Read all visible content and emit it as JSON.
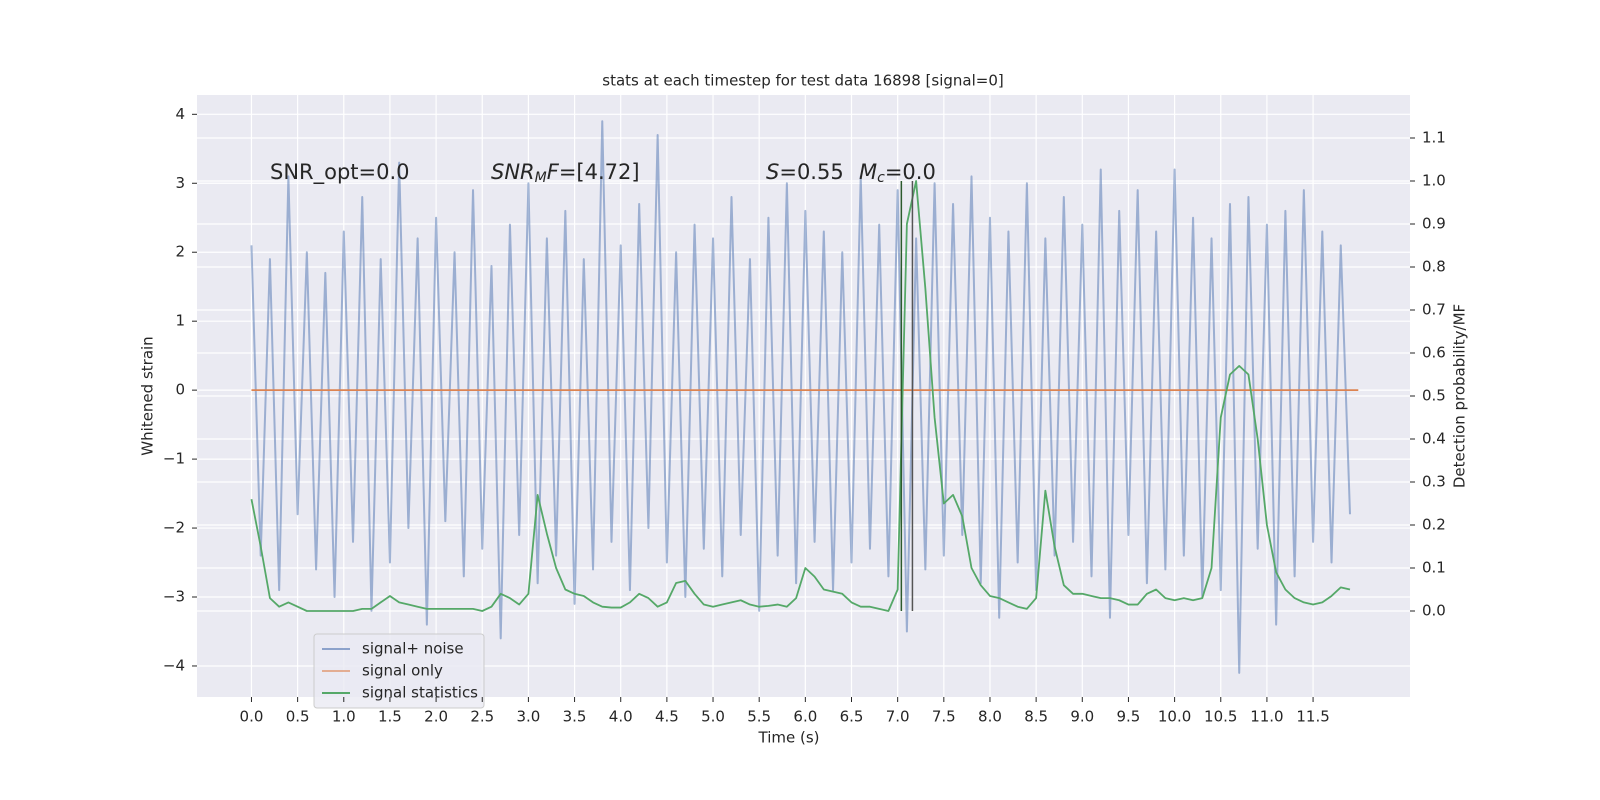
{
  "chart_data": {
    "type": "line",
    "title": "stats at each timestep for test data 16898 [signal=0]",
    "xlabel": "Time (s)",
    "ylabel": "Whitened strain",
    "y2label": "Detection probability/MF",
    "annotations": [
      [
        "SNR_opt=0.0"
      ],
      [
        "SNR",
        "M",
        "F",
        "=[4.72]"
      ],
      [
        "S",
        "=0.55"
      ],
      [
        "M",
        "c",
        "=0.0"
      ]
    ],
    "grid": true,
    "legend": "lower left",
    "xlim": [
      -0.59,
      12.55
    ],
    "ylim": [
      -4.45,
      4.28
    ],
    "y2lim": [
      -0.2,
      1.2
    ],
    "xticks": [
      {
        "value": 0,
        "label": "0.0"
      },
      0.5,
      {
        "value": 1,
        "label": "1.0"
      },
      1.5,
      {
        "value": 2,
        "label": "2.0"
      },
      2.5,
      {
        "value": 3,
        "label": "3.0"
      },
      3.5,
      {
        "value": 4,
        "label": "4.0"
      },
      4.5,
      {
        "value": 5,
        "label": "5.0"
      },
      5.5,
      {
        "value": 6,
        "label": "6.0"
      },
      6.5,
      {
        "value": 7,
        "label": "7.0"
      },
      7.5,
      {
        "value": 8,
        "label": "8.0"
      },
      8.5,
      {
        "value": 9,
        "label": "9.0"
      },
      9.5,
      {
        "value": 10,
        "label": "10.0"
      },
      10.5,
      {
        "value": 11,
        "label": "11.0"
      },
      11.5
    ],
    "yticks": [
      {
        "value": -4,
        "label": "−4"
      },
      {
        "value": -3,
        "label": "−3"
      },
      {
        "value": -2,
        "label": "−2"
      },
      {
        "value": -1,
        "label": "−1"
      },
      0,
      1,
      2,
      3,
      4
    ],
    "y2ticks": [
      {
        "value": 0,
        "label": "0.0"
      },
      0.1,
      0.2,
      0.3,
      0.4,
      0.5,
      0.6,
      0.7,
      0.8,
      0.9,
      {
        "value": 1,
        "label": "1.0"
      },
      1.1
    ],
    "x": [
      0.0,
      0.1,
      0.2,
      0.3,
      0.4,
      0.5,
      0.6,
      0.7,
      0.8,
      0.9,
      1.0,
      1.1,
      1.2,
      1.3,
      1.4,
      1.5,
      1.6,
      1.7,
      1.8,
      1.9,
      2.0,
      2.1,
      2.2,
      2.3,
      2.4,
      2.5,
      2.6,
      2.7,
      2.8,
      2.9,
      3.0,
      3.1,
      3.2,
      3.3,
      3.4,
      3.5,
      3.6,
      3.7,
      3.8,
      3.9,
      4.0,
      4.1,
      4.2,
      4.3,
      4.4,
      4.5,
      4.6,
      4.7,
      4.8,
      4.9,
      5.0,
      5.1,
      5.2,
      5.3,
      5.4,
      5.5,
      5.6,
      5.7,
      5.8,
      5.9,
      6.0,
      6.1,
      6.2,
      6.3,
      6.4,
      6.5,
      6.6,
      6.7,
      6.8,
      6.9,
      7.0,
      7.1,
      7.2,
      7.3,
      7.4,
      7.5,
      7.6,
      7.7,
      7.8,
      7.9,
      8.0,
      8.1,
      8.2,
      8.3,
      8.4,
      8.5,
      8.6,
      8.7,
      8.8,
      8.9,
      9.0,
      9.1,
      9.2,
      9.3,
      9.4,
      9.5,
      9.6,
      9.7,
      9.8,
      9.9,
      10.0,
      10.1,
      10.2,
      10.3,
      10.4,
      10.5,
      10.6,
      10.7,
      10.8,
      10.9,
      11.0,
      11.1,
      11.2,
      11.3,
      11.4,
      11.5,
      11.6,
      11.7,
      11.8,
      11.9
    ],
    "series": [
      {
        "name": "signal+ noise",
        "color": "#4c72b0",
        "values": [
          2.1,
          -2.4,
          1.9,
          -2.9,
          3.1,
          -1.8,
          2.0,
          -2.6,
          1.7,
          -3.0,
          2.3,
          -2.2,
          2.8,
          -3.2,
          1.9,
          -2.5,
          3.3,
          -2.0,
          2.2,
          -3.4,
          2.5,
          -1.9,
          2.0,
          -2.7,
          2.9,
          -2.3,
          1.8,
          -3.6,
          2.4,
          -2.1,
          3.0,
          -2.8,
          2.2,
          -2.4,
          2.6,
          -3.1,
          1.9,
          -2.6,
          3.9,
          -2.2,
          2.1,
          -2.9,
          2.7,
          -2.0,
          3.7,
          -2.5,
          2.0,
          -3.0,
          2.4,
          -2.3,
          2.2,
          -2.7,
          2.8,
          -2.1,
          1.9,
          -3.2,
          2.5,
          -2.4,
          3.0,
          -2.8,
          2.6,
          -2.2,
          2.3,
          -2.9,
          2.0,
          -2.5,
          3.1,
          -2.3,
          2.4,
          -2.7,
          2.9,
          -3.5,
          2.2,
          -2.6,
          3.0,
          -2.4,
          2.7,
          -2.1,
          3.1,
          -2.8,
          2.5,
          -3.3,
          2.3,
          -2.5,
          3.0,
          -2.9,
          2.2,
          -2.4,
          2.8,
          -2.2,
          2.4,
          -2.7,
          3.2,
          -3.3,
          2.6,
          -2.1,
          2.9,
          -2.8,
          2.3,
          -2.6,
          3.2,
          -2.4,
          2.5,
          -3.0,
          2.2,
          -2.9,
          2.7,
          -4.1,
          2.8,
          -2.3,
          2.4,
          -3.4,
          2.6,
          -2.7,
          2.9,
          -2.2,
          2.3,
          -2.5,
          2.1,
          -1.8
        ]
      },
      {
        "name": "signal only",
        "color": "#dd8452",
        "x": [
          0.0,
          11.99
        ],
        "values": [
          0,
          0
        ]
      },
      {
        "name": "signal statistics",
        "color": "#55a868",
        "axis": "y2",
        "values": [
          0.26,
          0.15,
          0.03,
          0.01,
          0.02,
          0.01,
          0.0,
          0.0,
          0.0,
          0.0,
          0.0,
          0.0,
          0.005,
          0.005,
          0.02,
          0.035,
          0.02,
          0.015,
          0.01,
          0.005,
          0.005,
          0.005,
          0.005,
          0.005,
          0.005,
          0.0,
          0.01,
          0.04,
          0.03,
          0.015,
          0.04,
          0.27,
          0.18,
          0.1,
          0.05,
          0.04,
          0.035,
          0.02,
          0.01,
          0.008,
          0.008,
          0.02,
          0.04,
          0.03,
          0.01,
          0.02,
          0.065,
          0.07,
          0.04,
          0.015,
          0.01,
          0.015,
          0.02,
          0.025,
          0.015,
          0.01,
          0.012,
          0.015,
          0.01,
          0.03,
          0.1,
          0.08,
          0.05,
          0.045,
          0.04,
          0.02,
          0.01,
          0.01,
          0.005,
          0.0,
          0.05,
          0.9,
          1.0,
          0.75,
          0.45,
          0.25,
          0.27,
          0.22,
          0.1,
          0.06,
          0.035,
          0.03,
          0.02,
          0.01,
          0.005,
          0.03,
          0.28,
          0.15,
          0.06,
          0.04,
          0.04,
          0.035,
          0.03,
          0.03,
          0.025,
          0.015,
          0.015,
          0.04,
          0.05,
          0.03,
          0.025,
          0.03,
          0.025,
          0.03,
          0.1,
          0.45,
          0.55,
          0.57,
          0.55,
          0.4,
          0.2,
          0.09,
          0.05,
          0.03,
          0.02,
          0.015,
          0.02,
          0.035,
          0.055,
          0.05
        ]
      }
    ],
    "vlines": [
      {
        "x": 7.04,
        "color": "#2d5a2d"
      },
      {
        "x": 7.16,
        "color": "#555555"
      }
    ]
  }
}
